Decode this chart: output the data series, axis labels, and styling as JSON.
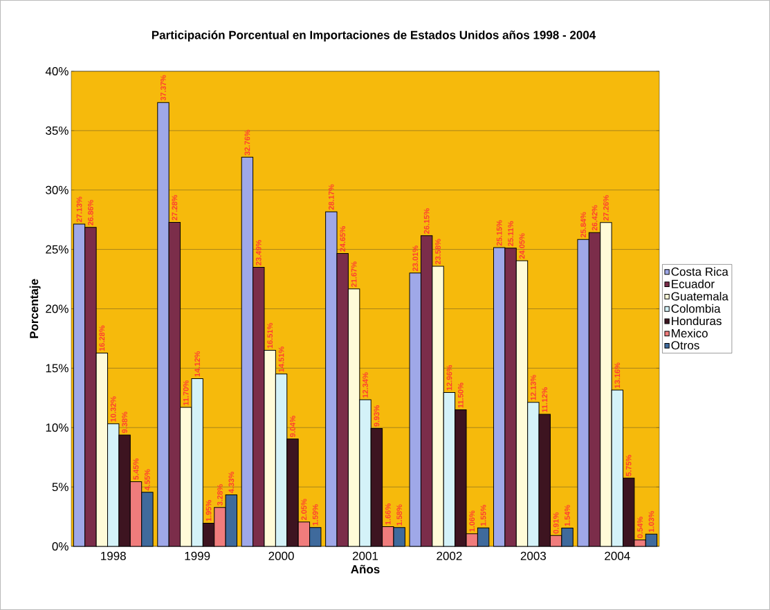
{
  "chart_data": {
    "type": "bar",
    "title": "Participación Porcentual en Importaciones de Estados Unidos años 1998 - 2004",
    "xlabel": "Años",
    "ylabel": "Porcentaje",
    "categories": [
      "1998",
      "1999",
      "2000",
      "2001",
      "2002",
      "2003",
      "2004"
    ],
    "ylim": [
      0,
      40
    ],
    "yticks": [
      {
        "value": 0,
        "label": "0%"
      },
      {
        "value": 5,
        "label": "5%"
      },
      {
        "value": 10,
        "label": "10%"
      },
      {
        "value": 15,
        "label": "15%"
      },
      {
        "value": 20,
        "label": "20%"
      },
      {
        "value": 25,
        "label": "25%"
      },
      {
        "value": 30,
        "label": "30%"
      },
      {
        "value": 35,
        "label": "35%"
      },
      {
        "value": 40,
        "label": "40%"
      }
    ],
    "grid": "y",
    "legend": "right",
    "series": [
      {
        "name": "Costa Rica",
        "color": "#9fa8e8",
        "values": [
          27.13,
          37.37,
          32.76,
          28.17,
          23.01,
          25.15,
          25.84
        ],
        "value_labels": [
          "27.13%",
          "37.37%",
          "32.76%",
          "28.17%",
          "23.01%",
          "25.15%",
          "25.84%"
        ]
      },
      {
        "name": "Ecuador",
        "color": "#7b2d4a",
        "values": [
          26.86,
          27.28,
          23.49,
          24.65,
          26.15,
          25.11,
          26.42
        ],
        "value_labels": [
          "26.86%",
          "27.28%",
          "23.49%",
          "24.65%",
          "26.15%",
          "25.11%",
          "26.42%"
        ]
      },
      {
        "name": "Guatemala",
        "color": "#fffbd8",
        "values": [
          16.28,
          11.7,
          16.51,
          21.67,
          23.58,
          24.05,
          27.26
        ],
        "value_labels": [
          "16.28%",
          "11.70%",
          "16.51%",
          "21.67%",
          "23.58%",
          "24.05%",
          "27.26%"
        ]
      },
      {
        "name": "Colombia",
        "color": "#d4f2f8",
        "values": [
          10.32,
          14.12,
          14.51,
          12.34,
          12.96,
          12.13,
          13.16
        ],
        "value_labels": [
          "10.32%",
          "14.12%",
          "14.51%",
          "12.34%",
          "12.96%",
          "12.13%",
          "13.16%"
        ]
      },
      {
        "name": "Honduras",
        "color": "#3d1420",
        "values": [
          9.38,
          1.95,
          9.04,
          9.93,
          11.5,
          11.12,
          5.75
        ],
        "value_labels": [
          "9.38%",
          "1.95%",
          "9.04%",
          "9.93%",
          "11.50%",
          "11.12%",
          "5.75%"
        ]
      },
      {
        "name": "Mexico",
        "color": "#f07c7c",
        "values": [
          5.45,
          3.28,
          2.05,
          1.66,
          1.06,
          0.91,
          0.54
        ],
        "value_labels": [
          "5.45%",
          "3.28%",
          "2.05%",
          "1.66%",
          "1.06%",
          "0.91%",
          "0.54%"
        ]
      },
      {
        "name": "Otros",
        "color": "#3f6a9c",
        "values": [
          4.55,
          4.33,
          1.59,
          1.58,
          1.55,
          1.54,
          1.03
        ],
        "value_labels": [
          "4.55%",
          "4.33%",
          "1.59%",
          "1.58%",
          "1.55%",
          "1.54%",
          "1.03%"
        ]
      }
    ]
  }
}
